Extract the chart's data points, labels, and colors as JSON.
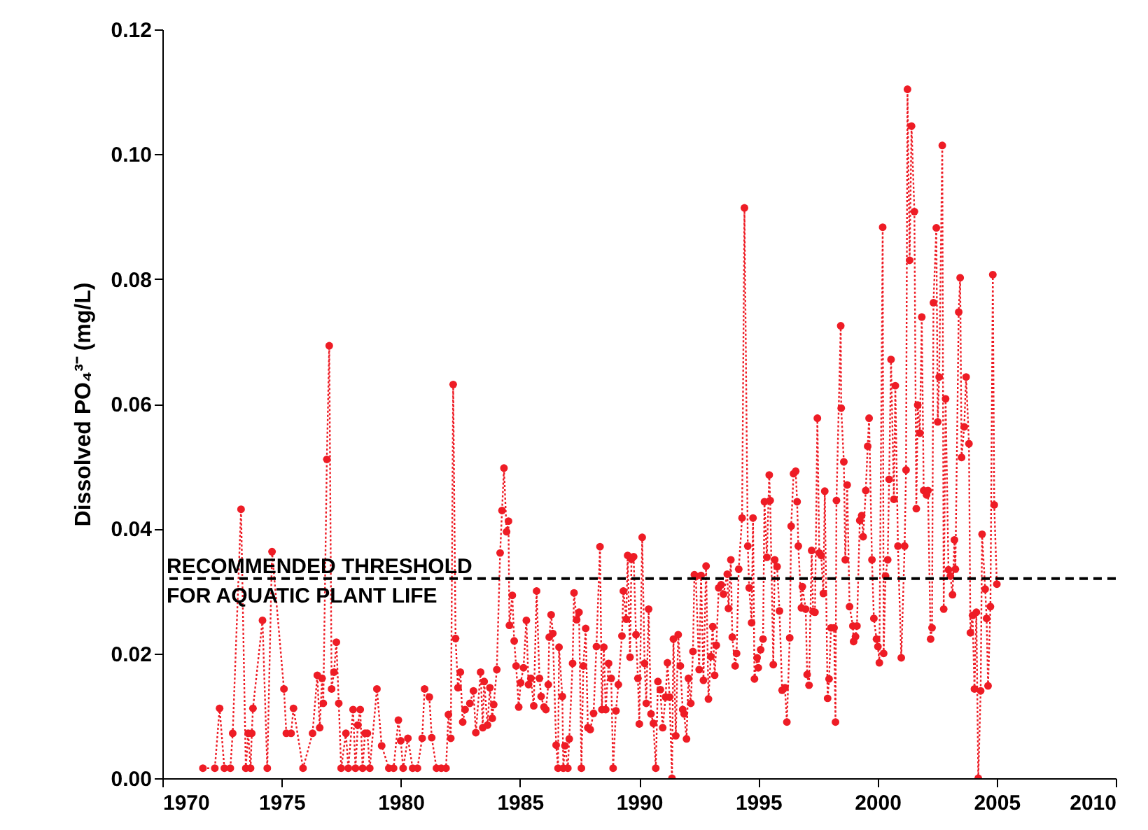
{
  "chart_data": {
    "type": "line",
    "ylabel": "Dissolved PO₄³⁻ (mg/L)",
    "xlim": [
      1970,
      2010
    ],
    "xticks": [
      1970,
      1975,
      1980,
      1985,
      1990,
      1995,
      2000,
      2005,
      2010
    ],
    "ylim": [
      0,
      0.12
    ],
    "yticks": [
      {
        "value": 0,
        "label": "0.00"
      },
      {
        "value": 0.02,
        "label": "0.02"
      },
      {
        "value": 0.04,
        "label": "0.04"
      },
      {
        "value": 0.06,
        "label": "0.06"
      },
      {
        "value": 0.08,
        "label": "0.08"
      },
      {
        "value": 0.1,
        "label": "0.10"
      },
      {
        "value": 0.12,
        "label": "0.12"
      }
    ],
    "grid": false,
    "marker": "circle",
    "line_style": "dotted",
    "ref_lines": [
      {
        "axis": "y",
        "value": 0.032,
        "label": "RECOMMENDED THRESHOLD\nFOR AQUATIC PLANT LIFE",
        "color": "#000000",
        "line_style": "dashed"
      }
    ],
    "series": [
      {
        "color": "#ee1c25",
        "x": [
          1971.7,
          1972.2,
          1972.4,
          1972.6,
          1972.85,
          1972.95,
          1973.3,
          1973.5,
          1973.6,
          1973.7,
          1973.75,
          1973.8,
          1974.2,
          1974.4,
          1974.6,
          1975.1,
          1975.2,
          1975.4,
          1975.5,
          1975.9,
          1976.3,
          1976.5,
          1976.6,
          1976.7,
          1976.75,
          1976.9,
          1977.0,
          1977.1,
          1977.2,
          1977.3,
          1977.4,
          1977.5,
          1977.7,
          1977.8,
          1978.0,
          1978.1,
          1978.2,
          1978.3,
          1978.4,
          1978.5,
          1978.6,
          1978.7,
          1979.0,
          1979.2,
          1979.5,
          1979.7,
          1979.9,
          1980.0,
          1980.1,
          1980.3,
          1980.5,
          1980.7,
          1980.9,
          1981.0,
          1981.2,
          1981.3,
          1981.5,
          1981.7,
          1981.9,
          1982.0,
          1982.1,
          1982.2,
          1982.3,
          1982.4,
          1982.5,
          1982.6,
          1982.7,
          1982.9,
          1983.05,
          1983.15,
          1983.35,
          1983.44,
          1983.5,
          1983.64,
          1983.74,
          1983.84,
          1983.9,
          1984.03,
          1984.17,
          1984.25,
          1984.33,
          1984.44,
          1984.52,
          1984.56,
          1984.68,
          1984.76,
          1984.84,
          1984.95,
          1985.03,
          1985.15,
          1985.27,
          1985.36,
          1985.46,
          1985.58,
          1985.7,
          1985.82,
          1985.89,
          1986.01,
          1986.09,
          1986.19,
          1986.23,
          1986.31,
          1986.38,
          1986.52,
          1986.6,
          1986.64,
          1986.78,
          1986.82,
          1986.89,
          1987.01,
          1987.07,
          1987.21,
          1987.27,
          1987.38,
          1987.48,
          1987.58,
          1987.66,
          1987.76,
          1987.85,
          1987.95,
          1988.09,
          1988.21,
          1988.36,
          1988.44,
          1988.52,
          1988.6,
          1988.72,
          1988.83,
          1988.91,
          1989.03,
          1989.13,
          1989.28,
          1989.34,
          1989.46,
          1989.52,
          1989.62,
          1989.68,
          1989.77,
          1989.87,
          1989.95,
          1990.01,
          1990.13,
          1990.23,
          1990.3,
          1990.4,
          1990.5,
          1990.6,
          1990.7,
          1990.79,
          1990.89,
          1990.99,
          1991.11,
          1991.19,
          1991.28,
          1991.38,
          1991.44,
          1991.54,
          1991.64,
          1991.73,
          1991.83,
          1991.89,
          1991.99,
          1992.07,
          1992.17,
          1992.26,
          1992.32,
          1992.38,
          1992.52,
          1992.6,
          1992.7,
          1992.81,
          1992.91,
          1993.01,
          1993.09,
          1993.17,
          1993.24,
          1993.34,
          1993.44,
          1993.54,
          1993.7,
          1993.75,
          1993.85,
          1993.91,
          1994.03,
          1994.09,
          1994.18,
          1994.32,
          1994.42,
          1994.56,
          1994.62,
          1994.72,
          1994.78,
          1994.84,
          1994.95,
          1995.0,
          1995.1,
          1995.2,
          1995.26,
          1995.36,
          1995.46,
          1995.5,
          1995.63,
          1995.69,
          1995.79,
          1995.89,
          1996.0,
          1996.12,
          1996.2,
          1996.32,
          1996.38,
          1996.48,
          1996.57,
          1996.63,
          1996.68,
          1996.81,
          1996.85,
          1996.99,
          1997.05,
          1997.13,
          1997.24,
          1997.3,
          1997.38,
          1997.48,
          1997.56,
          1997.64,
          1997.73,
          1997.79,
          1997.91,
          1997.97,
          1998.05,
          1998.18,
          1998.24,
          1998.28,
          1998.46,
          1998.48,
          1998.59,
          1998.65,
          1998.73,
          1998.83,
          1998.97,
          1999.0,
          1999.08,
          1999.14,
          1999.26,
          1999.34,
          1999.4,
          1999.51,
          1999.59,
          1999.65,
          1999.77,
          1999.85,
          1999.96,
          2000.02,
          2000.08,
          2000.22,
          2000.26,
          2000.34,
          2000.43,
          2000.49,
          2000.57,
          2000.69,
          2000.75,
          2000.86,
          2001.0,
          2001.14,
          2001.2,
          2001.26,
          2001.35,
          2001.43,
          2001.55,
          2001.63,
          2001.69,
          2001.78,
          2001.86,
          2001.94,
          2002.06,
          2002.12,
          2002.23,
          2002.29,
          2002.35,
          2002.47,
          2002.53,
          2002.59,
          2002.72,
          2002.78,
          2002.86,
          2002.98,
          2003.06,
          2003.15,
          2003.23,
          2003.27,
          2003.41,
          2003.47,
          2003.53,
          2003.64,
          2003.72,
          2003.84,
          2003.9,
          2003.99,
          2004.07,
          2004.15,
          2004.23,
          2004.33,
          2004.39,
          2004.52,
          2004.58,
          2004.64,
          2004.74,
          2004.84,
          2004.9,
          2005.01
        ],
        "values": [
          0.0016,
          0.0016,
          0.0112,
          0.0016,
          0.0016,
          0.0072,
          0.0431,
          0.0016,
          0.0072,
          0.0016,
          0.0072,
          0.0112,
          0.0253,
          0.0016,
          0.0363,
          0.0143,
          0.0072,
          0.0072,
          0.0112,
          0.0016,
          0.0072,
          0.0165,
          0.0081,
          0.016,
          0.012,
          0.0511,
          0.0693,
          0.0143,
          0.017,
          0.0218,
          0.012,
          0.0016,
          0.0072,
          0.0016,
          0.011,
          0.0016,
          0.0085,
          0.011,
          0.0016,
          0.0072,
          0.0072,
          0.0016,
          0.0143,
          0.0052,
          0.0016,
          0.0016,
          0.0093,
          0.006,
          0.0016,
          0.0064,
          0.0016,
          0.0016,
          0.0064,
          0.0143,
          0.013,
          0.0065,
          0.0016,
          0.0016,
          0.0016,
          0.0102,
          0.0064,
          0.0631,
          0.0224,
          0.0145,
          0.017,
          0.009,
          0.011,
          0.012,
          0.014,
          0.0073,
          0.017,
          0.0081,
          0.0155,
          0.0085,
          0.0145,
          0.0096,
          0.0118,
          0.0174,
          0.0361,
          0.0429,
          0.0497,
          0.0395,
          0.0412,
          0.0245,
          0.0293,
          0.022,
          0.018,
          0.0114,
          0.0153,
          0.0177,
          0.0253,
          0.015,
          0.016,
          0.0116,
          0.03,
          0.016,
          0.0131,
          0.0114,
          0.011,
          0.015,
          0.0226,
          0.0262,
          0.0232,
          0.0053,
          0.0016,
          0.021,
          0.0131,
          0.0016,
          0.0052,
          0.0016,
          0.0063,
          0.0184,
          0.0297,
          0.0254,
          0.0266,
          0.0016,
          0.018,
          0.024,
          0.0081,
          0.0078,
          0.0104,
          0.0211,
          0.0371,
          0.011,
          0.021,
          0.011,
          0.0184,
          0.016,
          0.0016,
          0.0108,
          0.015,
          0.0228,
          0.03,
          0.0255,
          0.0357,
          0.0194,
          0.0351,
          0.0355,
          0.023,
          0.016,
          0.0087,
          0.0386,
          0.0184,
          0.012,
          0.0271,
          0.0103,
          0.0088,
          0.0016,
          0.0155,
          0.0142,
          0.0081,
          0.013,
          0.0185,
          0.013,
          0.0,
          0.0223,
          0.0068,
          0.023,
          0.018,
          0.011,
          0.0103,
          0.0063,
          0.016,
          0.012,
          0.0203,
          0.0326,
          0.0323,
          0.0174,
          0.0325,
          0.0157,
          0.034,
          0.0127,
          0.0195,
          0.0243,
          0.0165,
          0.0213,
          0.0305,
          0.031,
          0.0295,
          0.0327,
          0.0272,
          0.035,
          0.0226,
          0.018,
          0.02,
          0.0335,
          0.0417,
          0.0914,
          0.0372,
          0.0305,
          0.0249,
          0.0417,
          0.0159,
          0.0193,
          0.0177,
          0.0206,
          0.0223,
          0.0443,
          0.0354,
          0.0486,
          0.0445,
          0.0182,
          0.035,
          0.0339,
          0.0268,
          0.0141,
          0.0145,
          0.009,
          0.0225,
          0.0404,
          0.0488,
          0.0492,
          0.0443,
          0.0372,
          0.0273,
          0.0307,
          0.0271,
          0.0166,
          0.0149,
          0.0365,
          0.0267,
          0.0266,
          0.0577,
          0.0361,
          0.0357,
          0.0296,
          0.046,
          0.0128,
          0.0159,
          0.0241,
          0.0241,
          0.009,
          0.0445,
          0.0725,
          0.0593,
          0.0507,
          0.035,
          0.047,
          0.0275,
          0.0244,
          0.0219,
          0.0227,
          0.0244,
          0.0413,
          0.0421,
          0.0387,
          0.0461,
          0.0532,
          0.0577,
          0.035,
          0.0256,
          0.0223,
          0.0211,
          0.0185,
          0.0883,
          0.02,
          0.0324,
          0.035,
          0.0479,
          0.0671,
          0.0447,
          0.0629,
          0.0372,
          0.0193,
          0.0372,
          0.0494,
          0.1104,
          0.083,
          0.1045,
          0.0908,
          0.0432,
          0.0598,
          0.0553,
          0.0739,
          0.0461,
          0.0454,
          0.0461,
          0.0223,
          0.0241,
          0.0762,
          0.0882,
          0.0571,
          0.0643,
          0.1014,
          0.0271,
          0.0608,
          0.0334,
          0.0324,
          0.0294,
          0.0382,
          0.0335,
          0.0747,
          0.0802,
          0.0514,
          0.0563,
          0.0643,
          0.0536,
          0.0233,
          0.0261,
          0.0143,
          0.0266,
          0.0,
          0.014,
          0.0391,
          0.0303,
          0.0256,
          0.0148,
          0.0275,
          0.0807,
          0.0438,
          0.0311
        ]
      }
    ]
  }
}
